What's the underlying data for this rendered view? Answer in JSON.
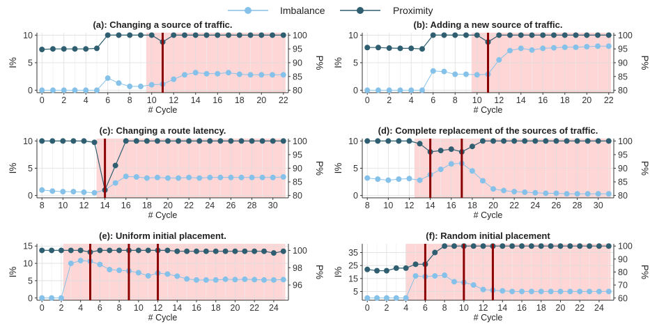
{
  "legend": {
    "placement": "top-center",
    "entries": [
      {
        "label": "Imbalance",
        "color": "#85c1e9"
      },
      {
        "label": "Proximity",
        "color": "#2e5e70"
      }
    ]
  },
  "colors": {
    "imbalance": "#85c1e9",
    "proximity": "#2e5e70",
    "shade": "#ffd6d6",
    "vline": "#8b0000",
    "grid": "#e6e6e6",
    "axis": "#333333"
  },
  "chart_data": [
    {
      "type": "line",
      "title": "(a): Changing a source of traffic.",
      "xlabel": "# Cycle",
      "ylabel": "I%",
      "y2label": "P%",
      "xlim": [
        0,
        22
      ],
      "ylim": [
        0,
        10
      ],
      "y2lim": [
        80,
        100
      ],
      "xticks": [
        0,
        2,
        4,
        6,
        8,
        10,
        12,
        14,
        16,
        18,
        20,
        22
      ],
      "yticks": [
        0,
        5,
        10
      ],
      "y2ticks": [
        80,
        85,
        90,
        95,
        100
      ],
      "shade": [
        9.5,
        22.2
      ],
      "vlines": [
        11
      ],
      "x": [
        0,
        1,
        2,
        3,
        4,
        5,
        6,
        7,
        8,
        9,
        10,
        11,
        12,
        13,
        14,
        15,
        16,
        17,
        18,
        19,
        20,
        21,
        22
      ],
      "series": [
        {
          "name": "Imbalance",
          "axis": "left",
          "values": [
            0,
            0,
            0,
            0,
            0,
            0,
            2.2,
            1.3,
            0.7,
            0.7,
            1,
            1.1,
            2,
            2.8,
            3.2,
            3,
            3,
            3.2,
            2.9,
            2.8,
            2.8,
            2.8,
            2.8
          ]
        },
        {
          "name": "Proximity",
          "axis": "right",
          "values": [
            94.8,
            95,
            95,
            95,
            95,
            95.2,
            100,
            100,
            100,
            100,
            100,
            97.5,
            100,
            100,
            100,
            100,
            100,
            100,
            100,
            100,
            100,
            100,
            100
          ]
        }
      ]
    },
    {
      "type": "line",
      "title": "(b): Adding a new source of traffic.",
      "xlabel": "# Cycle",
      "ylabel": "I%",
      "y2label": "P%",
      "xlim": [
        0,
        22
      ],
      "ylim": [
        0,
        10
      ],
      "y2lim": [
        80,
        100
      ],
      "xticks": [
        0,
        2,
        4,
        6,
        8,
        10,
        12,
        14,
        16,
        18,
        20,
        22
      ],
      "yticks": [
        0,
        5,
        10
      ],
      "y2ticks": [
        80,
        85,
        90,
        95,
        100
      ],
      "shade": [
        9.5,
        22.2
      ],
      "vlines": [
        11
      ],
      "x": [
        0,
        1,
        2,
        3,
        4,
        5,
        6,
        7,
        8,
        9,
        10,
        11,
        12,
        13,
        14,
        15,
        16,
        17,
        18,
        19,
        20,
        21,
        22
      ],
      "series": [
        {
          "name": "Imbalance",
          "axis": "left",
          "values": [
            0,
            0,
            0,
            0,
            0,
            0,
            3.5,
            3.4,
            2.9,
            2.9,
            2.8,
            2.9,
            5.5,
            7.2,
            7.6,
            7.3,
            7.6,
            7.7,
            7.8,
            7.8,
            7.9,
            8,
            8
          ]
        },
        {
          "name": "Proximity",
          "axis": "right",
          "values": [
            95.5,
            95.5,
            95.3,
            95.2,
            95.2,
            95,
            100,
            100,
            100,
            100,
            100,
            97.5,
            100,
            100,
            100,
            100,
            100,
            100,
            100,
            100,
            100,
            100,
            100
          ]
        }
      ]
    },
    {
      "type": "line",
      "title": "(c): Changing a route latency.",
      "xlabel": "# Cycle",
      "ylabel": "I%",
      "y2label": "P%",
      "xlim": [
        8,
        31
      ],
      "ylim": [
        0,
        10
      ],
      "y2lim": [
        80,
        100
      ],
      "xticks": [
        8,
        10,
        12,
        14,
        16,
        18,
        20,
        22,
        24,
        26,
        28,
        30
      ],
      "yticks": [
        0,
        5,
        10
      ],
      "y2ticks": [
        80,
        85,
        90,
        95,
        100
      ],
      "shade": [
        13.2,
        31.2
      ],
      "vlines": [
        14
      ],
      "x": [
        8,
        9,
        10,
        11,
        12,
        13,
        14,
        15,
        16,
        17,
        18,
        19,
        20,
        21,
        22,
        23,
        24,
        25,
        26,
        27,
        28,
        29,
        30,
        31
      ],
      "series": [
        {
          "name": "Imbalance",
          "axis": "left",
          "values": [
            1,
            0.8,
            0.7,
            0.7,
            0.6,
            0.5,
            1,
            2.3,
            3.5,
            3.4,
            3.2,
            3.3,
            3.2,
            3.2,
            3.3,
            3.2,
            3.3,
            3.3,
            3.3,
            3.3,
            3.3,
            3.3,
            3.3,
            3.4
          ]
        },
        {
          "name": "Proximity",
          "axis": "right",
          "values": [
            100,
            100,
            100,
            100,
            100,
            99.5,
            82,
            91,
            100,
            100,
            100,
            100,
            100,
            100,
            100,
            100,
            100,
            100,
            100,
            100,
            100,
            100,
            100,
            100
          ]
        }
      ]
    },
    {
      "type": "line",
      "title": "(d): Complete replacement of the sources of traffic.",
      "xlabel": "# Cycle",
      "ylabel": "I%",
      "y2label": "P%",
      "xlim": [
        8,
        31
      ],
      "ylim": [
        0,
        10
      ],
      "y2lim": [
        80,
        100
      ],
      "xticks": [
        8,
        10,
        12,
        14,
        16,
        18,
        20,
        22,
        24,
        26,
        28,
        30
      ],
      "yticks": [
        0,
        5,
        10
      ],
      "y2ticks": [
        80,
        85,
        90,
        95,
        100
      ],
      "shade": [
        12.5,
        31.2
      ],
      "vlines": [
        14,
        17
      ],
      "x": [
        8,
        9,
        10,
        11,
        12,
        13,
        14,
        15,
        16,
        17,
        18,
        19,
        20,
        21,
        22,
        23,
        24,
        25,
        26,
        27,
        28,
        29,
        30,
        31
      ],
      "series": [
        {
          "name": "Imbalance",
          "axis": "left",
          "values": [
            3.2,
            3,
            2.8,
            3,
            3.1,
            2.8,
            3.8,
            4.8,
            5.8,
            5.9,
            4.5,
            2.7,
            1.2,
            0.9,
            0.7,
            0.6,
            0.5,
            0.4,
            0.4,
            0.3,
            0.3,
            0.3,
            0.3,
            0.3
          ]
        },
        {
          "name": "Proximity",
          "axis": "right",
          "values": [
            100,
            100,
            100,
            100,
            100,
            99,
            96,
            96.5,
            97,
            96,
            98,
            100,
            100,
            100,
            100,
            100,
            100,
            100,
            100,
            100,
            100,
            100,
            100,
            100
          ]
        }
      ]
    },
    {
      "type": "line",
      "title": "(e): Uniform initial placement.",
      "xlabel": "# Cycle",
      "ylabel": "I%",
      "y2label": "P%",
      "xlim": [
        0,
        25
      ],
      "ylim": [
        0,
        15
      ],
      "y2lim": [
        94.5,
        100.5
      ],
      "xticks": [
        0,
        2,
        4,
        6,
        8,
        10,
        12,
        14,
        16,
        18,
        20,
        22,
        24
      ],
      "yticks": [
        0,
        5,
        10,
        15
      ],
      "y2ticks": [
        96,
        98,
        100
      ],
      "shade": [
        2.2,
        25.2
      ],
      "vlines": [
        5,
        9,
        12
      ],
      "x": [
        0,
        1,
        2,
        3,
        4,
        5,
        6,
        7,
        8,
        9,
        10,
        11,
        12,
        13,
        14,
        15,
        16,
        17,
        18,
        19,
        20,
        21,
        22,
        23,
        24,
        25
      ],
      "series": [
        {
          "name": "Imbalance",
          "axis": "left",
          "values": [
            0,
            0,
            0,
            10,
            10.8,
            10.6,
            9.7,
            8.2,
            8,
            7.8,
            7.3,
            6.4,
            7.2,
            6.9,
            6.3,
            5.5,
            5.2,
            5.2,
            5.2,
            5.4,
            5.3,
            5.4,
            5.3,
            5.2,
            5.2,
            5.3
          ]
        },
        {
          "name": "Proximity",
          "axis": "right",
          "values": [
            100,
            100,
            100,
            100,
            100,
            99.8,
            100,
            100,
            100,
            100,
            100,
            100,
            100,
            100,
            99.9,
            99.9,
            99.9,
            99.9,
            99.9,
            99.9,
            99.9,
            99.9,
            99.9,
            99.9,
            99.7,
            99.9
          ]
        }
      ]
    },
    {
      "type": "line",
      "title": "(f): Random initial placement",
      "xlabel": "# Cycle",
      "ylabel": "I%",
      "y2label": "P%",
      "xlim": [
        0,
        25
      ],
      "ylim": [
        0,
        40
      ],
      "y2lim": [
        60,
        100
      ],
      "xticks": [
        0,
        2,
        4,
        6,
        8,
        10,
        12,
        14,
        16,
        18,
        20,
        22,
        24
      ],
      "yticks": [
        5,
        15,
        25,
        35
      ],
      "y2ticks": [
        60,
        70,
        80,
        90,
        100
      ],
      "shade": [
        4,
        25.2
      ],
      "vlines": [
        6,
        10,
        13
      ],
      "x": [
        0,
        1,
        2,
        3,
        4,
        5,
        6,
        7,
        8,
        9,
        10,
        11,
        12,
        13,
        14,
        15,
        16,
        17,
        18,
        19,
        20,
        21,
        22,
        23,
        24,
        25
      ],
      "series": [
        {
          "name": "Imbalance",
          "axis": "left",
          "values": [
            0,
            0,
            0,
            0,
            0,
            17,
            16.5,
            17,
            17.5,
            12.5,
            12,
            10,
            6.5,
            6,
            5.5,
            5,
            5,
            5,
            5,
            5,
            5,
            5,
            5,
            5,
            5,
            5
          ]
        },
        {
          "name": "Proximity",
          "axis": "right",
          "values": [
            82,
            81,
            81,
            83,
            83,
            86,
            86,
            95,
            100,
            100,
            100,
            100,
            100,
            100,
            100,
            100,
            100,
            100,
            100,
            100,
            100,
            100,
            100,
            100,
            100,
            100
          ]
        }
      ]
    }
  ]
}
